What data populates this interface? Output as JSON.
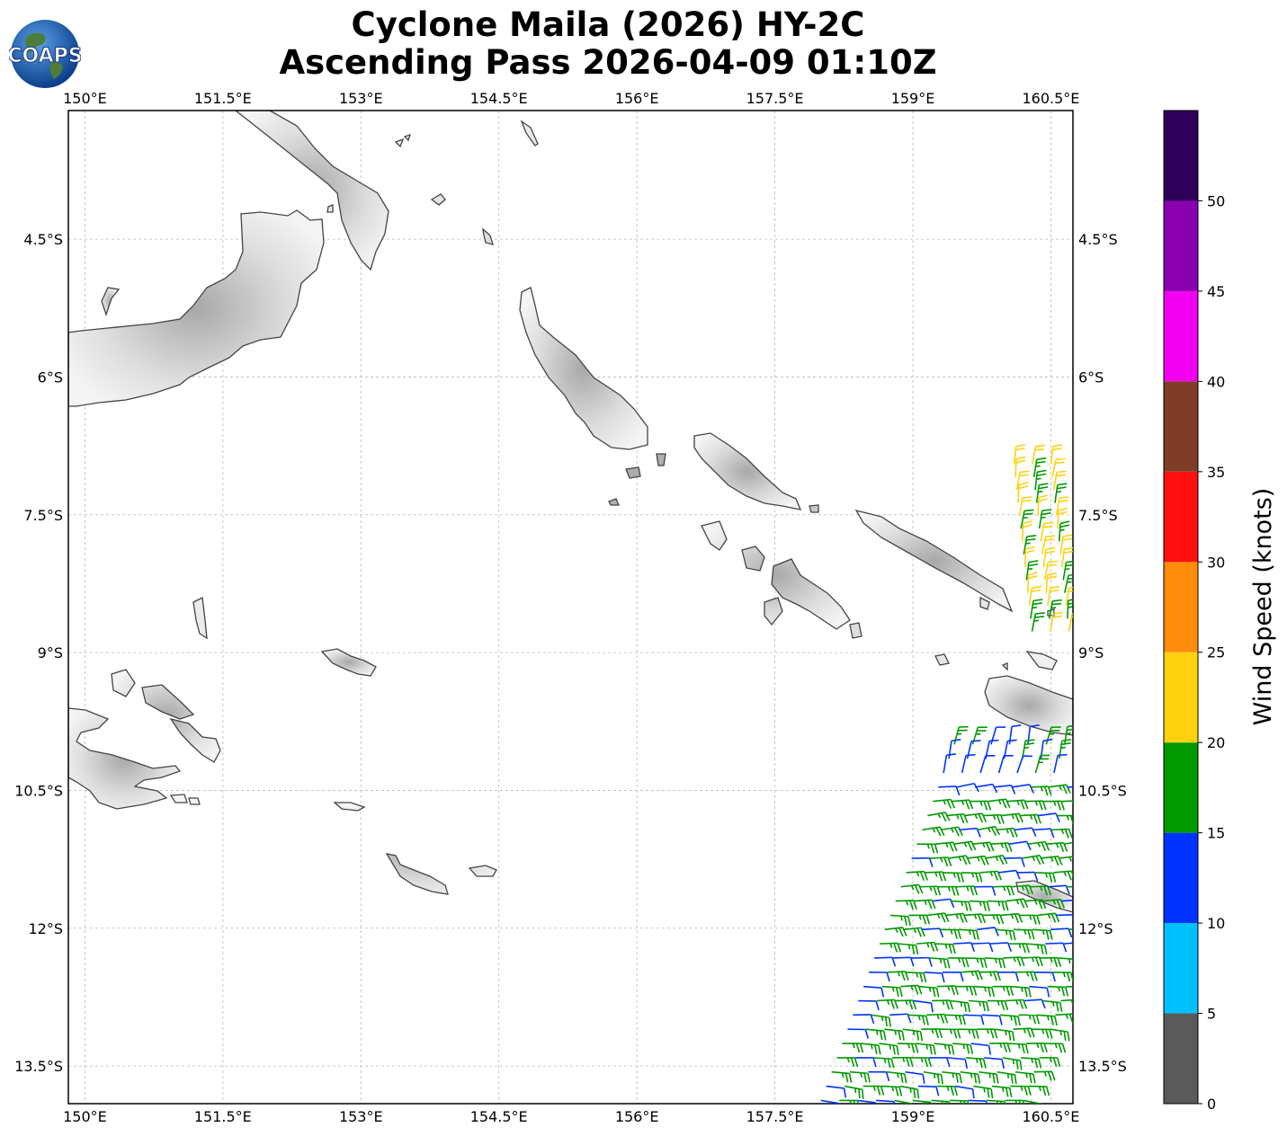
{
  "title_line1": "Cyclone Maila (2026) HY-2C",
  "title_line2": "Ascending Pass 2026-04-09 01:10Z",
  "logo_text": "COAPS",
  "map": {
    "lon_ticks": [
      "150°E",
      "151.5°E",
      "153°E",
      "154.5°E",
      "156°E",
      "157.5°E",
      "159°E",
      "160.5°E"
    ],
    "lat_ticks": [
      "4.5°S",
      "6°S",
      "7.5°S",
      "9°S",
      "10.5°S",
      "12°S",
      "13.5°S"
    ],
    "lon_values": [
      150,
      151.5,
      153,
      154.5,
      156,
      157.5,
      159,
      160.5
    ],
    "lat_values": [
      -4.5,
      -6,
      -7.5,
      -9,
      -10.5,
      -12,
      -13.5
    ],
    "lon_range": [
      149.82,
      160.74
    ],
    "lat_range": [
      -3.1,
      -13.91
    ]
  },
  "colorbar": {
    "label": "Wind Speed (knots)",
    "ticks": [
      "0",
      "5",
      "10",
      "15",
      "20",
      "25",
      "30",
      "35",
      "40",
      "45",
      "50"
    ],
    "bins": [
      {
        "from": 0,
        "to": 5,
        "color": "#5a5a5a"
      },
      {
        "from": 5,
        "to": 10,
        "color": "#00bfff"
      },
      {
        "from": 10,
        "to": 15,
        "color": "#0033ff"
      },
      {
        "from": 15,
        "to": 20,
        "color": "#009900"
      },
      {
        "from": 20,
        "to": 25,
        "color": "#ffd210"
      },
      {
        "from": 25,
        "to": 30,
        "color": "#ff8c0a"
      },
      {
        "from": 30,
        "to": 35,
        "color": "#ff1010"
      },
      {
        "from": 35,
        "to": 40,
        "color": "#7f3d28"
      },
      {
        "from": 40,
        "to": 45,
        "color": "#f200f2"
      },
      {
        "from": 45,
        "to": 50,
        "color": "#8a00b0"
      },
      {
        "from": 50,
        "to": 55,
        "color": "#2e0059"
      }
    ]
  },
  "wind_swaths": [
    {
      "name": "north",
      "lon": [
        160.05,
        160.7
      ],
      "lat": [
        -6.9,
        -8.9
      ],
      "speeds": [
        15,
        20,
        25
      ]
    },
    {
      "name": "south",
      "lon": [
        157.8,
        160.7
      ],
      "lat": [
        -9.5,
        -13.9
      ],
      "speeds": [
        10,
        15,
        20
      ]
    }
  ]
}
